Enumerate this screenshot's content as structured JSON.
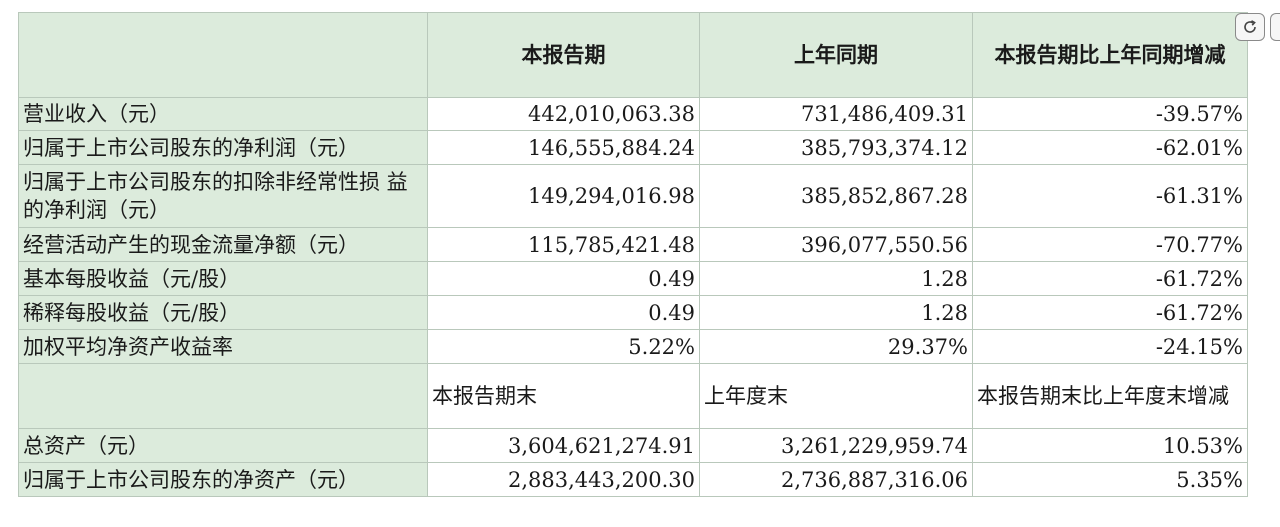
{
  "table": {
    "headers": [
      "",
      "本报告期",
      "上年同期",
      "本报告期比上年同期增减"
    ],
    "rows": [
      {
        "label": "营业收入（元）",
        "current": "442,010,063.38",
        "prior": "731,486,409.31",
        "change": "-39.57%"
      },
      {
        "label": "归属于上市公司股东的净利润（元）",
        "current": "146,555,884.24",
        "prior": "385,793,374.12",
        "change": "-62.01%"
      },
      {
        "label": "归属于上市公司股东的扣除非经常性损 益的净利润（元）",
        "current": "149,294,016.98",
        "prior": "385,852,867.28",
        "change": "-61.31%"
      },
      {
        "label": "经营活动产生的现金流量净额（元）",
        "current": "115,785,421.48",
        "prior": "396,077,550.56",
        "change": "-70.77%"
      },
      {
        "label": "基本每股收益（元/股）",
        "current": "0.49",
        "prior": "1.28",
        "change": "-61.72%"
      },
      {
        "label": "稀释每股收益（元/股）",
        "current": "0.49",
        "prior": "1.28",
        "change": "-61.72%"
      },
      {
        "label": "加权平均净资产收益率",
        "current": "5.22%",
        "prior": "29.37%",
        "change": "-24.15%"
      }
    ],
    "sub_headers": [
      "",
      "本报告期末",
      "上年度末",
      "本报告期末比上年度末增减"
    ],
    "rows2": [
      {
        "label": "总资产（元）",
        "current": "3,604,621,274.91",
        "prior": "3,261,229,959.74",
        "change": "10.53%"
      },
      {
        "label": "归属于上市公司股东的净资产（元）",
        "current": "2,883,443,200.30",
        "prior": "2,736,887,316.06",
        "change": "5.35%"
      }
    ]
  },
  "toolbar": {
    "reload_icon": "reload-icon"
  }
}
